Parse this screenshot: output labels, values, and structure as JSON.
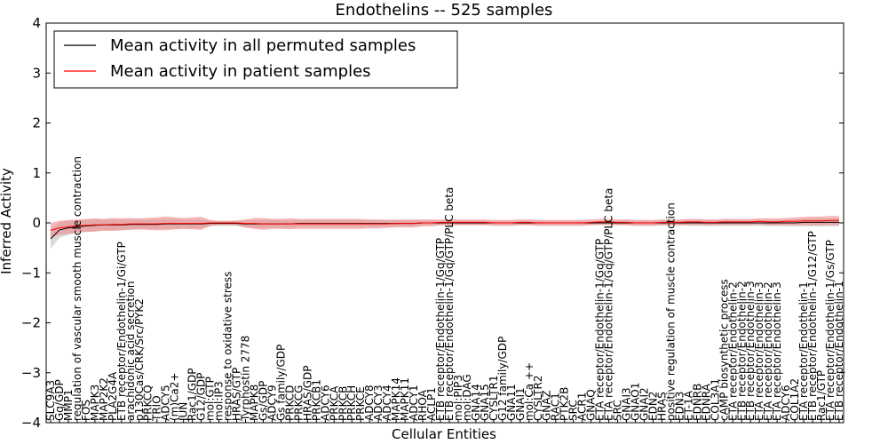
{
  "chart_data": {
    "type": "line",
    "title": "Endothelins -- 525 samples",
    "xlabel": "Cellular Entities",
    "ylabel": "Inferred Activity",
    "ylim": [
      -4,
      4
    ],
    "yticks": [
      4,
      3,
      2,
      1,
      0,
      -1,
      -2,
      -3,
      -4
    ],
    "ytick_labels": [
      "4",
      "3",
      "2",
      "1",
      "0",
      "−1",
      "−2",
      "−3",
      "−4"
    ],
    "grid": false,
    "legend": "upper-left",
    "categories": [
      "SLC9A3",
      "Gq/GDP",
      "MMP1",
      "regulation of vascular smooth muscle contraction",
      "FOS",
      "MAPK3",
      "MAP2K2",
      "PLA2G4A",
      "ETB receptor/Endothelin-1/Gi/GTP",
      "arachidonic acid secretion",
      "p130Cas/CRK/Src/PYK2",
      "PRKCQ",
      "TRIO",
      "ADCY5",
      "(m)Ca2+",
      "JUN",
      "Rac1/GDP",
      "G12/GDP",
      "mol:GTP",
      "mol:IP3",
      "response to oxidative stress",
      "HRAS/GTP",
      "Tyrphostin 2778",
      "MAPK8",
      "Gs/GDP",
      "ADCY9",
      "Gs family/GDP",
      "PRKCD",
      "PRKCG",
      "HRAS/GDP",
      "PRKCB1",
      "ADCY6",
      "PRKCA",
      "PRKCB",
      "PRKCH",
      "PRKCE",
      "ADCY8",
      "ADCY3",
      "ADCY4",
      "MAPK14",
      "MAPK11",
      "ADCY1",
      "RHOA",
      "ACLP1",
      "ETB receptor/Endothelin-1/Gq/GTP",
      "ETB receptor/Endothelin-1/Gq/GTP/PLC beta",
      "mol:PIP3",
      "mol:DAG",
      "GNA14",
      "GNA15",
      "CYSLTR1",
      "G12 family/GDP",
      "GNA11",
      "GNAI1",
      "mol:Ca ++",
      "CYSLTR2",
      "GNAZ",
      "RAC1",
      "PTK2B",
      "SRC",
      "ACR1",
      "GNAQ",
      "ETA receptor/Endothelin-1/Gq/GTP",
      "ETA receptor/Endothelin-1/Gq/GTP/PLC beta",
      "SRC",
      "GNAI3",
      "GNAO1",
      "GNAI2",
      "EDN2",
      "HRAS",
      "positive regulation of muscle contraction",
      "EDN3",
      "ET-1A",
      "EDNRB",
      "EDNRA",
      "COL3A1",
      "cAMP biosynthetic process",
      "ETA receptor/Endothelin-2",
      "ETB receptor/Endothelin-2",
      "ETB receptor/Endothelin-3",
      "ETA receptor/Endothelin-3",
      "ETA receptor/Endothelin-2",
      "ETA receptor/Endothelin-3",
      "ADCY6",
      "COL1A2",
      "ETA receptor/Endothelin-1",
      "ETB receptor/Endothelin-1/G12/GTP",
      "Rac1/GTP",
      "ETA receptor/Endothelin-1/Gs/GTP",
      "ETB receptor/Endothelin-1"
    ],
    "series": [
      {
        "name": "Mean activity in all permuted samples",
        "color": "#000000",
        "band_color": "#bfbfbf",
        "values": [
          -0.32,
          -0.14,
          -0.1,
          -0.08,
          -0.06,
          -0.05,
          -0.04,
          -0.04,
          -0.04,
          -0.03,
          -0.03,
          -0.03,
          -0.03,
          -0.02,
          -0.02,
          -0.02,
          -0.02,
          -0.02,
          -0.01,
          -0.01,
          -0.01,
          -0.01,
          -0.02,
          -0.02,
          -0.02,
          -0.02,
          -0.02,
          -0.02,
          -0.01,
          -0.01,
          -0.01,
          -0.01,
          -0.01,
          -0.01,
          -0.01,
          -0.01,
          -0.01,
          -0.01,
          -0.01,
          -0.01,
          -0.01,
          -0.01,
          0.0,
          0.0,
          0.0,
          0.0,
          0.0,
          0.0,
          0.0,
          0.0,
          0.0,
          0.0,
          0.0,
          0.0,
          0.0,
          0.0,
          0.0,
          0.0,
          0.0,
          0.0,
          0.0,
          0.0,
          0.0,
          0.0,
          0.0,
          0.0,
          0.0,
          0.0,
          0.0,
          0.0,
          0.0,
          0.0,
          0.0,
          0.0,
          0.0,
          0.0,
          0.0,
          0.0,
          0.0,
          0.0,
          0.0,
          0.0,
          0.0,
          0.0,
          0.0,
          0.01,
          0.01,
          0.01,
          0.01,
          0.01
        ],
        "band": [
          0.2,
          0.16,
          0.14,
          0.13,
          0.12,
          0.12,
          0.11,
          0.11,
          0.11,
          0.1,
          0.1,
          0.1,
          0.1,
          0.1,
          0.1,
          0.09,
          0.09,
          0.09,
          0.06,
          0.05,
          0.05,
          0.05,
          0.07,
          0.08,
          0.08,
          0.08,
          0.08,
          0.08,
          0.07,
          0.07,
          0.07,
          0.07,
          0.07,
          0.07,
          0.07,
          0.07,
          0.07,
          0.07,
          0.07,
          0.06,
          0.06,
          0.06,
          0.05,
          0.05,
          0.04,
          0.04,
          0.04,
          0.04,
          0.04,
          0.04,
          0.04,
          0.04,
          0.04,
          0.04,
          0.04,
          0.04,
          0.04,
          0.04,
          0.04,
          0.04,
          0.04,
          0.04,
          0.04,
          0.04,
          0.04,
          0.04,
          0.05,
          0.05,
          0.05,
          0.05,
          0.05,
          0.05,
          0.06,
          0.06,
          0.06,
          0.06,
          0.06,
          0.06,
          0.06,
          0.06,
          0.06,
          0.06,
          0.06,
          0.07,
          0.07,
          0.08,
          0.08,
          0.08,
          0.08,
          0.08
        ]
      },
      {
        "name": "Mean activity in patient samples",
        "color": "#ff0000",
        "band_color": "#f08080",
        "values": [
          -0.15,
          -0.1,
          -0.08,
          -0.06,
          -0.05,
          -0.04,
          -0.04,
          -0.03,
          -0.03,
          -0.02,
          -0.02,
          -0.02,
          -0.02,
          -0.01,
          -0.01,
          -0.01,
          -0.01,
          -0.01,
          0.0,
          0.0,
          0.0,
          0.0,
          -0.01,
          -0.01,
          -0.02,
          -0.02,
          -0.02,
          -0.02,
          -0.02,
          -0.02,
          -0.02,
          -0.02,
          -0.02,
          -0.02,
          -0.02,
          -0.02,
          -0.02,
          -0.02,
          -0.02,
          -0.01,
          -0.01,
          -0.01,
          0.0,
          0.0,
          0.01,
          0.01,
          0.01,
          0.01,
          0.01,
          0.01,
          0.0,
          0.0,
          0.0,
          0.01,
          0.01,
          0.0,
          0.0,
          0.0,
          0.0,
          0.0,
          0.0,
          0.01,
          0.02,
          0.02,
          0.01,
          0.01,
          0.0,
          0.0,
          0.0,
          0.01,
          0.01,
          0.01,
          0.02,
          0.02,
          0.01,
          0.01,
          0.02,
          0.02,
          0.02,
          0.02,
          0.03,
          0.02,
          0.02,
          0.03,
          0.03,
          0.04,
          0.04,
          0.04,
          0.05,
          0.05
        ],
        "band": [
          0.15,
          0.14,
          0.14,
          0.13,
          0.13,
          0.13,
          0.12,
          0.13,
          0.12,
          0.12,
          0.11,
          0.12,
          0.13,
          0.14,
          0.12,
          0.11,
          0.12,
          0.13,
          0.06,
          0.04,
          0.04,
          0.05,
          0.08,
          0.11,
          0.12,
          0.1,
          0.1,
          0.11,
          0.1,
          0.1,
          0.1,
          0.1,
          0.1,
          0.1,
          0.1,
          0.1,
          0.09,
          0.09,
          0.08,
          0.08,
          0.08,
          0.08,
          0.07,
          0.07,
          0.06,
          0.06,
          0.06,
          0.06,
          0.06,
          0.06,
          0.06,
          0.06,
          0.06,
          0.06,
          0.06,
          0.06,
          0.06,
          0.06,
          0.06,
          0.06,
          0.06,
          0.06,
          0.06,
          0.06,
          0.06,
          0.06,
          0.06,
          0.06,
          0.06,
          0.06,
          0.06,
          0.06,
          0.06,
          0.06,
          0.06,
          0.06,
          0.06,
          0.06,
          0.06,
          0.06,
          0.06,
          0.07,
          0.07,
          0.07,
          0.08,
          0.08,
          0.09,
          0.09,
          0.09,
          0.09
        ]
      }
    ]
  }
}
